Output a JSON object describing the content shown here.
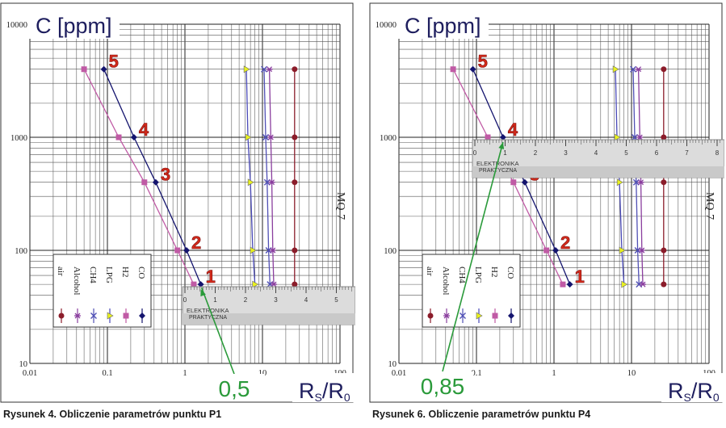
{
  "chart_data": [
    {
      "type": "line",
      "x_scale": "log",
      "y_scale": "log",
      "xlim": [
        0.01,
        100
      ],
      "ylim": [
        10,
        10000
      ],
      "title": "C [ppm]",
      "xlabel_base": "R",
      "xlabel_sub1": "S",
      "xlabel_mid": "/R",
      "xlabel_sub2": "0",
      "sensor_label": "MQ-7",
      "x_ticks": [
        "0.01",
        "0.1",
        "1",
        "10",
        "100"
      ],
      "y_ticks": [
        "10",
        "100",
        "1000",
        "10000"
      ],
      "legend": [
        "air",
        "Alcohol",
        "CH4",
        "LPG",
        "H2",
        "CO"
      ],
      "series": [
        {
          "name": "CO",
          "color": "#14146e",
          "marker": "diamond",
          "x": [
            1.6,
            1.05,
            0.42,
            0.22,
            0.09
          ],
          "y": [
            50,
            100,
            400,
            1000,
            4000
          ]
        },
        {
          "name": "H2",
          "color": "#c05aa5",
          "marker": "square",
          "x": [
            1.3,
            0.8,
            0.3,
            0.14,
            0.05
          ],
          "y": [
            50,
            100,
            400,
            1000,
            4000
          ]
        },
        {
          "name": "LPG",
          "color": "#4a4ab8",
          "marker": "triangle",
          "x": [
            8.0,
            7.5,
            7.0,
            6.5,
            6.2
          ],
          "y": [
            50,
            100,
            400,
            1000,
            4000
          ]
        },
        {
          "name": "CH4",
          "color": "#5050b5",
          "marker": "x",
          "x": [
            12.5,
            12.0,
            11.5,
            11.0,
            10.5
          ],
          "y": [
            50,
            100,
            400,
            1000,
            4000
          ]
        },
        {
          "name": "Alcohol",
          "color": "#8a3e9e",
          "marker": "star",
          "x": [
            14.0,
            13.6,
            13.2,
            12.8,
            12.3
          ],
          "y": [
            50,
            100,
            400,
            1000,
            4000
          ]
        },
        {
          "name": "air",
          "color": "#8b1c2a",
          "marker": "circle",
          "x": [
            26,
            26,
            26,
            26,
            26
          ],
          "y": [
            50,
            100,
            400,
            1000,
            4000
          ]
        }
      ],
      "point_labels": [
        {
          "text": "1",
          "x": 1.6,
          "y": 50
        },
        {
          "text": "2",
          "x": 1.05,
          "y": 100
        },
        {
          "text": "3",
          "x": 0.42,
          "y": 400
        },
        {
          "text": "4",
          "x": 0.22,
          "y": 1000
        },
        {
          "text": "5",
          "x": 0.09,
          "y": 4000
        }
      ],
      "ruler": {
        "brand": "ELEKTRONIKA",
        "brand2": "PRAKTYCZNA",
        "ticks": [
          "0",
          "1",
          "2",
          "3",
          "4",
          "5"
        ]
      },
      "reading": {
        "value": "0,5",
        "x": 1.6,
        "y": 50
      },
      "caption": "Rysunek 4. Obliczenie parametrów punktu P1"
    },
    {
      "type": "line",
      "x_scale": "log",
      "y_scale": "log",
      "xlim": [
        0.01,
        100
      ],
      "ylim": [
        10,
        10000
      ],
      "title": "C [ppm]",
      "xlabel_base": "R",
      "xlabel_sub1": "S",
      "xlabel_mid": "/R",
      "xlabel_sub2": "0",
      "sensor_label": "MQ-7",
      "x_ticks": [
        "0.01",
        "0.1",
        "1",
        "10",
        "100"
      ],
      "y_ticks": [
        "10",
        "100",
        "1000",
        "10000"
      ],
      "legend": [
        "air",
        "Alcohol",
        "CH4",
        "LPG",
        "H2",
        "CO"
      ],
      "series": [
        {
          "name": "CO",
          "color": "#14146e",
          "marker": "diamond",
          "x": [
            1.6,
            1.05,
            0.42,
            0.22,
            0.09
          ],
          "y": [
            50,
            100,
            400,
            1000,
            4000
          ]
        },
        {
          "name": "H2",
          "color": "#c05aa5",
          "marker": "square",
          "x": [
            1.3,
            0.8,
            0.3,
            0.14,
            0.05
          ],
          "y": [
            50,
            100,
            400,
            1000,
            4000
          ]
        },
        {
          "name": "LPG",
          "color": "#4a4ab8",
          "marker": "triangle",
          "x": [
            8.0,
            7.5,
            7.0,
            6.5,
            6.2
          ],
          "y": [
            50,
            100,
            400,
            1000,
            4000
          ]
        },
        {
          "name": "CH4",
          "color": "#5050b5",
          "marker": "x",
          "x": [
            12.5,
            12.0,
            11.5,
            11.0,
            10.5
          ],
          "y": [
            50,
            100,
            400,
            1000,
            4000
          ]
        },
        {
          "name": "Alcohol",
          "color": "#8a3e9e",
          "marker": "star",
          "x": [
            14.0,
            13.6,
            13.2,
            12.8,
            12.3
          ],
          "y": [
            50,
            100,
            400,
            1000,
            4000
          ]
        },
        {
          "name": "air",
          "color": "#8b1c2a",
          "marker": "circle",
          "x": [
            26,
            26,
            26,
            26,
            26
          ],
          "y": [
            50,
            100,
            400,
            1000,
            4000
          ]
        }
      ],
      "point_labels": [
        {
          "text": "1",
          "x": 1.6,
          "y": 50
        },
        {
          "text": "2",
          "x": 1.05,
          "y": 100
        },
        {
          "text": "3",
          "x": 0.42,
          "y": 400
        },
        {
          "text": "4",
          "x": 0.22,
          "y": 1000
        },
        {
          "text": "5",
          "x": 0.09,
          "y": 4000
        }
      ],
      "ruler": {
        "brand": "ELEKTRONIKA",
        "brand2": "PRAKTYCZNA",
        "ticks": [
          "0",
          "1",
          "2",
          "3",
          "4",
          "5",
          "6",
          "7",
          "8"
        ]
      },
      "reading": {
        "value": "0,85",
        "x": 0.22,
        "y": 1000
      },
      "caption": "Rysunek 6. Obliczenie parametrów punktu P4"
    }
  ]
}
